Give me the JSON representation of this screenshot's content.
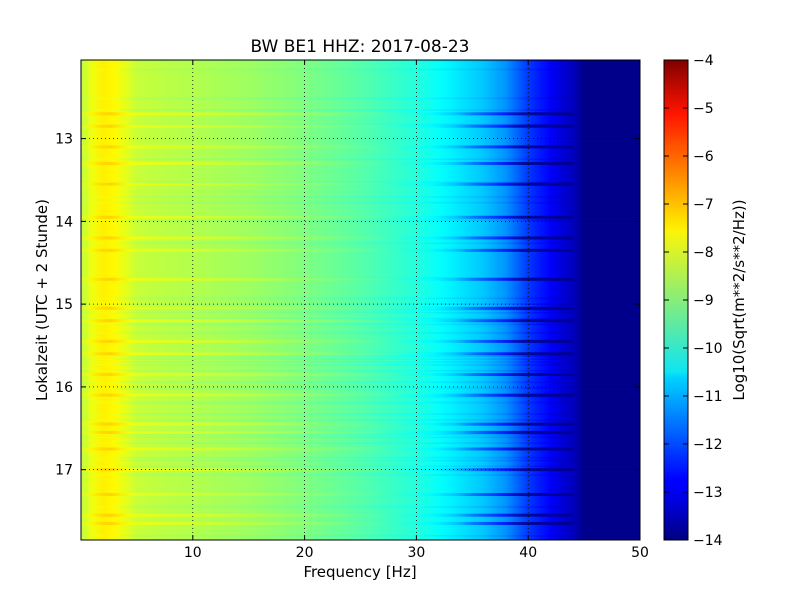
{
  "chart_data": {
    "type": "heatmap",
    "title": "BW BE1 HHZ: 2017-08-23",
    "xlabel": "Frequency [Hz]",
    "ylabel": "Lokalzeit (UTC + 2 Stunde)",
    "xlim": [
      0,
      50
    ],
    "ylim": [
      12.05,
      17.85
    ],
    "y_inverted": true,
    "x_ticks": [
      10,
      20,
      30,
      40,
      50
    ],
    "y_ticks": [
      13,
      14,
      15,
      16,
      17
    ],
    "grid": true,
    "colormap": "jet",
    "colorbar": {
      "label": "Log10(Sqrt(m**2/s**2/Hz))",
      "range": [
        -14,
        -4
      ],
      "ticks": [
        -4,
        -5,
        -6,
        -7,
        -8,
        -9,
        -10,
        -11,
        -12,
        -13,
        -14
      ]
    },
    "frequency_profile": {
      "frequency_hz": [
        0,
        1,
        2,
        3,
        4,
        5,
        7,
        10,
        15,
        20,
        25,
        28,
        30,
        32,
        34,
        36,
        38,
        40,
        42,
        44,
        45,
        50
      ],
      "log10_amplitude": [
        -8.4,
        -7.9,
        -7.6,
        -7.7,
        -8.0,
        -8.3,
        -8.4,
        -8.5,
        -8.7,
        -9.0,
        -9.4,
        -9.7,
        -9.9,
        -10.2,
        -10.5,
        -10.8,
        -11.3,
        -12.2,
        -12.8,
        -13.4,
        -13.9,
        -13.9
      ]
    },
    "bright_bands_local_hour": [
      12.7,
      12.85,
      13.1,
      13.3,
      13.55,
      13.95,
      14.2,
      14.35,
      14.7,
      15.05,
      15.2,
      15.45,
      15.6,
      15.85,
      16.1,
      16.45,
      16.55,
      16.75,
      17.0,
      17.3,
      17.55,
      17.65
    ]
  }
}
